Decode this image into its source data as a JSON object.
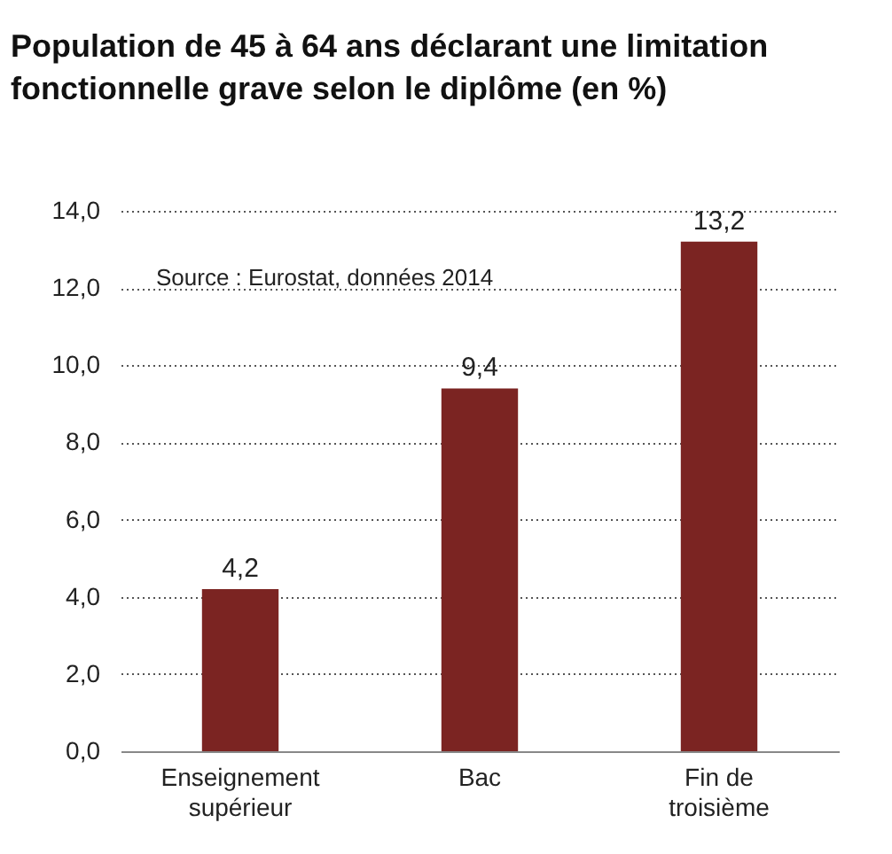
{
  "chart_data": {
    "type": "bar",
    "title": "Population de 45 à 64 ans déclarant une limitation fonctionnelle grave selon le diplôme (en %)",
    "categories": [
      "Enseignement supérieur",
      "Bac",
      "Fin de troisième"
    ],
    "values": [
      4.2,
      9.4,
      13.2
    ],
    "color": "#7b2422",
    "value_labels": [
      "4,2",
      "9,4",
      "13,2"
    ],
    "ylim": [
      0,
      14
    ],
    "yticks": [
      {
        "value": 0,
        "label": "0,0"
      },
      {
        "value": 2,
        "label": "2,0"
      },
      {
        "value": 4,
        "label": "4,0"
      },
      {
        "value": 6,
        "label": "6,0"
      },
      {
        "value": 8,
        "label": "8,0"
      },
      {
        "value": 10,
        "label": "10,0"
      },
      {
        "value": 12,
        "label": "12,0"
      },
      {
        "value": 14,
        "label": "14,0"
      }
    ],
    "grid": "y",
    "annotations": [
      "Source : Eurostat, données 2014"
    ]
  }
}
